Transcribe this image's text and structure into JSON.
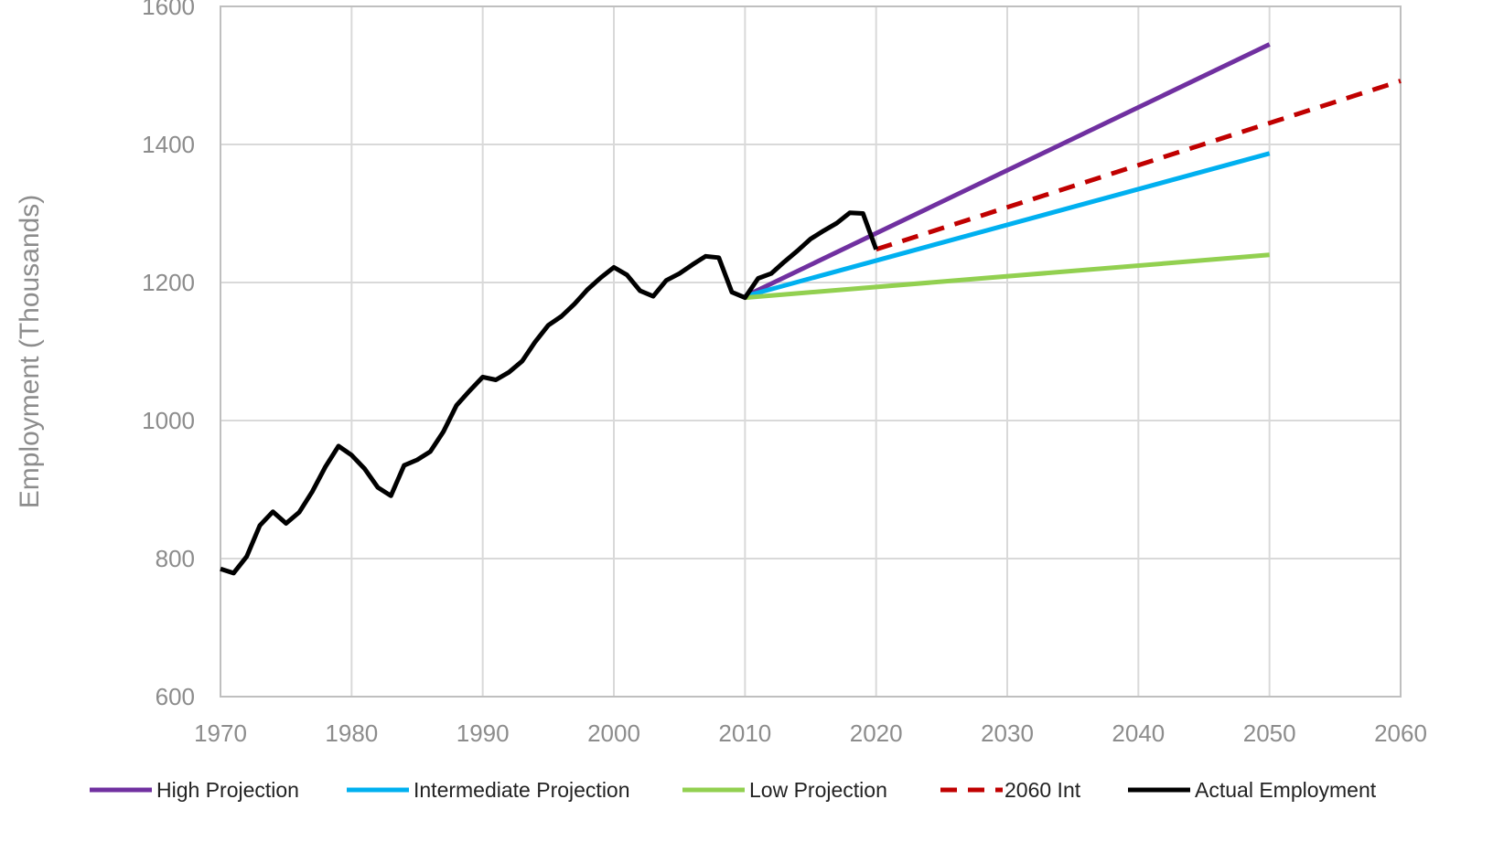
{
  "chart_data": {
    "type": "line",
    "title": "",
    "xlabel": "",
    "ylabel": "Employment (Thousands)",
    "xlim": [
      1970,
      2060
    ],
    "ylim": [
      600,
      1600
    ],
    "x_ticks": [
      1970,
      1980,
      1990,
      2000,
      2010,
      2020,
      2030,
      2040,
      2050,
      2060
    ],
    "y_ticks": [
      600,
      800,
      1000,
      1200,
      1400,
      1600
    ],
    "grid": true,
    "legend_position": "bottom",
    "series": [
      {
        "name": "High Projection",
        "color": "#7030a0",
        "dash": "solid",
        "x": [
          2010,
          2050
        ],
        "y": [
          1180,
          1545
        ]
      },
      {
        "name": "Intermediate Projection",
        "color": "#00b0f0",
        "dash": "solid",
        "x": [
          2010,
          2050
        ],
        "y": [
          1180,
          1387
        ]
      },
      {
        "name": "Low Projection",
        "color": "#92d050",
        "dash": "solid",
        "x": [
          2010,
          2050
        ],
        "y": [
          1178,
          1240
        ]
      },
      {
        "name": "2060 Int",
        "color": "#c00000",
        "dash": "dashed",
        "x": [
          2020,
          2060
        ],
        "y": [
          1248,
          1492
        ]
      },
      {
        "name": "Actual Employment",
        "color": "#000000",
        "dash": "solid",
        "x": [
          1970,
          1971,
          1972,
          1973,
          1974,
          1975,
          1976,
          1977,
          1978,
          1979,
          1980,
          1981,
          1982,
          1983,
          1984,
          1985,
          1986,
          1987,
          1988,
          1989,
          1990,
          1991,
          1992,
          1993,
          1994,
          1995,
          1996,
          1997,
          1998,
          1999,
          2000,
          2001,
          2002,
          2003,
          2004,
          2005,
          2006,
          2007,
          2008,
          2009,
          2010,
          2011,
          2012,
          2013,
          2014,
          2015,
          2016,
          2017,
          2018,
          2019,
          2020
        ],
        "y": [
          785,
          779,
          803,
          848,
          868,
          851,
          867,
          897,
          933,
          963,
          950,
          930,
          903,
          891,
          935,
          943,
          955,
          984,
          1022,
          1043,
          1063,
          1059,
          1070,
          1086,
          1114,
          1138,
          1151,
          1169,
          1190,
          1207,
          1222,
          1211,
          1188,
          1180,
          1203,
          1213,
          1226,
          1238,
          1236,
          1186,
          1178,
          1206,
          1213,
          1230,
          1246,
          1263,
          1275,
          1286,
          1301,
          1300,
          1248
        ]
      }
    ]
  }
}
